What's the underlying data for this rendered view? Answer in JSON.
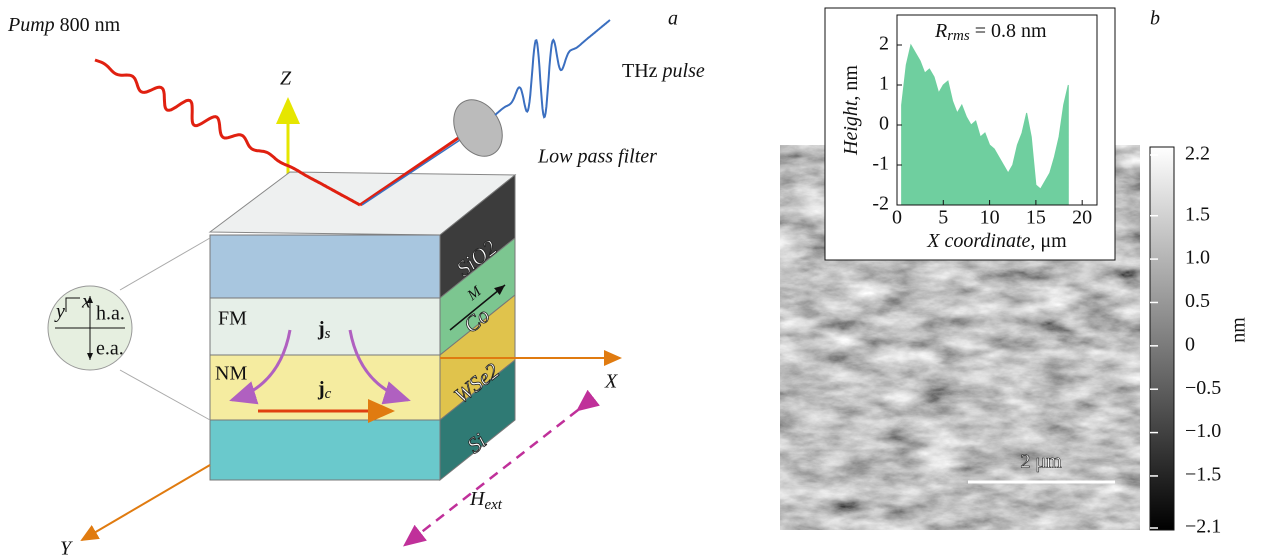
{
  "panel_a": {
    "label": "a",
    "pump": {
      "italic": "Pump",
      "rest": " 800 nm"
    },
    "thz": {
      "normal": "THz ",
      "italic": "pulse"
    },
    "filter": "Low pass filter",
    "axes": {
      "z": "Z",
      "x": "X",
      "y": "Y"
    },
    "field": {
      "symbol": "H",
      "subscript": "ext"
    },
    "layers": [
      "SiO2",
      "Co",
      "WSe2",
      "Si"
    ],
    "regions": [
      "FM",
      "NM"
    ],
    "spin_current": {
      "symbol": "j",
      "subscript": "s"
    },
    "charge_current": {
      "symbol": "j",
      "subscript": "c"
    },
    "magnetization": "M",
    "inset": {
      "x": "x",
      "y": "y",
      "hard_axis": "h.a.",
      "easy_axis": "e.a."
    }
  },
  "panel_b": {
    "label": "b",
    "scale_bar": "2 μm",
    "colorbar": {
      "lim": [
        -2.1,
        2.2
      ],
      "unit": "nm",
      "ticks": [
        2.2,
        1.5,
        {
          "value": 1.0,
          "label": "1.0"
        },
        0.5,
        0,
        {
          "value": -0.5,
          "label": "−0.5"
        },
        {
          "value": -1.0,
          "label": "−1.0"
        },
        {
          "value": -1.5,
          "label": "−1.5"
        },
        {
          "value": -2.1,
          "label": "−2.1"
        }
      ]
    }
  },
  "chart_data": {
    "type": "area",
    "title": {
      "symbol": "R",
      "subscript": "rms",
      "rest": " = 0.8 nm"
    },
    "xlabel": {
      "italic": "X coordinate",
      "rest": ", μm"
    },
    "ylabel": {
      "italic": "Height",
      "rest": ", nm"
    },
    "color": "#6fcf9f",
    "x": [
      0.5,
      1,
      1.5,
      2,
      2.5,
      3,
      3.5,
      4,
      4.5,
      5,
      5.5,
      6,
      6.5,
      7,
      7.5,
      8,
      8.5,
      9,
      9.5,
      10,
      10.5,
      11,
      11.5,
      12,
      12.5,
      13,
      13.5,
      14,
      14.5,
      15,
      15.5,
      16,
      16.5,
      17,
      17.5,
      18,
      18.5
    ],
    "values": [
      0.5,
      1.5,
      2.0,
      1.8,
      1.6,
      1.3,
      1.4,
      1.2,
      0.8,
      1.0,
      1.1,
      0.6,
      0.3,
      0.5,
      0.2,
      0.0,
      0.1,
      -0.3,
      -0.2,
      -0.5,
      -0.6,
      -0.8,
      -1.0,
      -1.2,
      -1.0,
      -0.5,
      -0.2,
      0.3,
      -0.3,
      -1.5,
      -1.6,
      -1.4,
      -1.2,
      -0.8,
      -0.3,
      0.5,
      1.0
    ],
    "xlim": [
      0,
      21.6
    ],
    "ylim": [
      -2,
      2.75
    ],
    "xticks": [
      0,
      5,
      10,
      15,
      20
    ],
    "yticks": [
      -2,
      -1,
      0,
      1,
      2
    ]
  }
}
